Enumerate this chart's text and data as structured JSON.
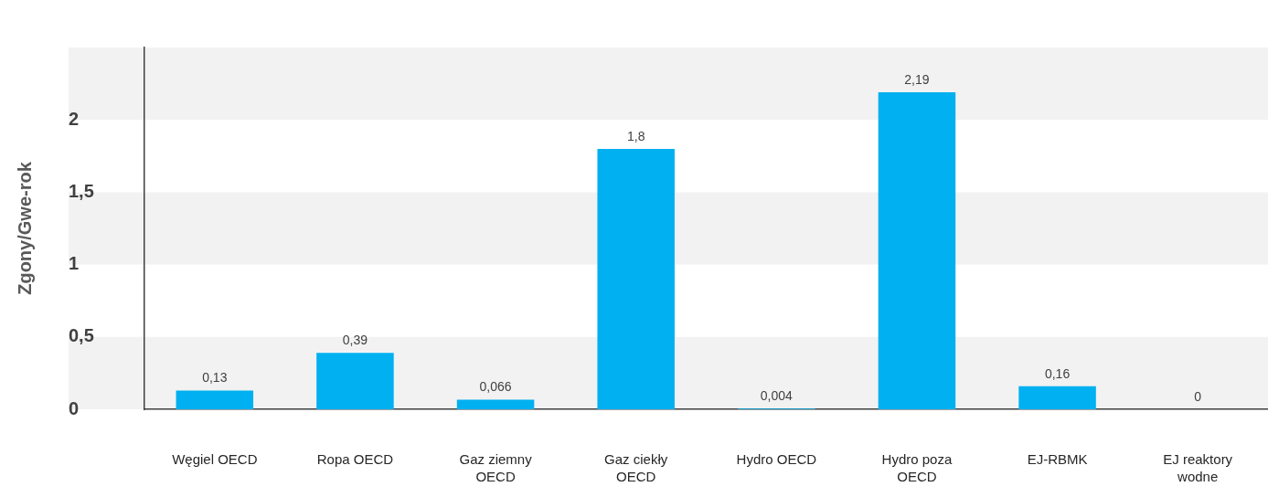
{
  "chart_data": {
    "type": "bar",
    "ylabel": "Zgony/Gwe-rok",
    "categories": [
      "Węgiel OECD",
      "Ropa OECD",
      "Gaz ziemny OECD",
      "Gaz ciekły OECD",
      "Hydro OECD",
      "Hydro poza OECD",
      "EJ-RBMK",
      "EJ reaktory wodne"
    ],
    "values": [
      0.13,
      0.39,
      0.066,
      1.8,
      0.004,
      2.19,
      0.16,
      0
    ],
    "color": "#00b0f0",
    "ylim": [
      0,
      2.5
    ],
    "yticks": [
      0,
      {
        "value": 0.5,
        "label": "0,5"
      },
      1,
      {
        "value": 1.5,
        "label": "1,5"
      },
      2
    ],
    "value_labels": [
      "0,13",
      "0,39",
      "0,066",
      "1,8",
      "0,004",
      "2,19",
      "0,16",
      "0"
    ],
    "bands": [
      {
        "axis": "y",
        "from": 0,
        "to": 0.5,
        "color": "#f2f2f2"
      },
      {
        "axis": "y",
        "from": 1,
        "to": 1.5,
        "color": "#f2f2f2"
      },
      {
        "axis": "y",
        "from": 2,
        "to": 2.5,
        "color": "#f2f2f2"
      }
    ],
    "legend": false
  }
}
